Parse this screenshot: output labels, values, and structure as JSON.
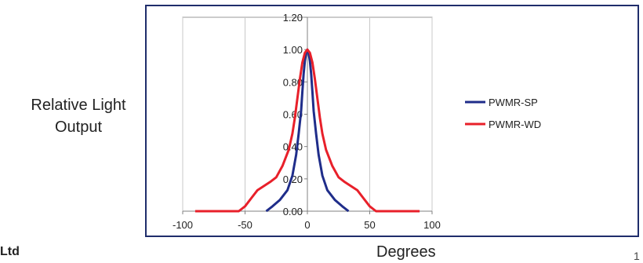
{
  "page": {
    "ylabel_line1": "Relative Light",
    "ylabel_line2": "Output",
    "xlabel": "Degrees",
    "footer_left": "Ltd",
    "footer_right": "1"
  },
  "chart_data": {
    "type": "line",
    "title": "",
    "xlabel": "Degrees",
    "ylabel": "Relative Light Output",
    "xlim": [
      -100,
      100
    ],
    "ylim": [
      0,
      1.2
    ],
    "xticks": [
      "-100",
      "-50",
      "0",
      "50",
      "100"
    ],
    "yticks": [
      "0.00",
      "0.20",
      "0.40",
      "0.60",
      "0.80",
      "1.00",
      "1.20"
    ],
    "grid": "vertical",
    "legend": "right",
    "series": [
      {
        "name": "PWMR-SP",
        "color": "#1f2d8a",
        "x": [
          -33,
          -28,
          -22,
          -16,
          -12,
          -9,
          -7,
          -5,
          -4,
          -3,
          -2,
          -1,
          0,
          1,
          2,
          3,
          4,
          5,
          7,
          9,
          12,
          16,
          22,
          28,
          33
        ],
        "y": [
          0,
          0.03,
          0.07,
          0.13,
          0.22,
          0.35,
          0.48,
          0.62,
          0.74,
          0.85,
          0.93,
          0.98,
          1.0,
          0.98,
          0.93,
          0.85,
          0.74,
          0.62,
          0.48,
          0.35,
          0.22,
          0.13,
          0.07,
          0.03,
          0
        ]
      },
      {
        "name": "PWMR-WD",
        "color": "#e8202a",
        "x": [
          -90,
          -55,
          -50,
          -45,
          -40,
          -30,
          -25,
          -20,
          -15,
          -12,
          -10,
          -8,
          -6,
          -4,
          -2,
          0,
          2,
          4,
          6,
          8,
          10,
          12,
          15,
          20,
          25,
          30,
          40,
          45,
          50,
          55,
          90
        ],
        "y": [
          0,
          0,
          0.03,
          0.08,
          0.13,
          0.18,
          0.21,
          0.28,
          0.38,
          0.48,
          0.58,
          0.7,
          0.82,
          0.92,
          0.98,
          1.0,
          0.98,
          0.92,
          0.82,
          0.7,
          0.58,
          0.48,
          0.38,
          0.28,
          0.21,
          0.18,
          0.13,
          0.08,
          0.03,
          0,
          0
        ]
      }
    ]
  }
}
